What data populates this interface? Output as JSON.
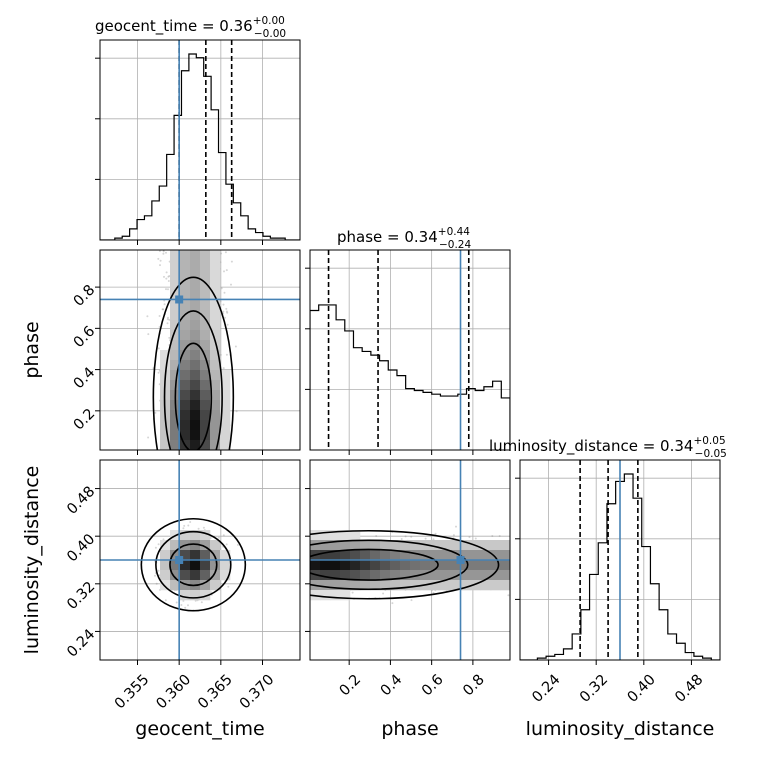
{
  "chart_data": {
    "type": "corner",
    "parameters": [
      "geocent_time",
      "phase",
      "luminosity_distance"
    ],
    "axis_labels": {
      "geocent_time": "geocent_time",
      "phase": "phase",
      "luminosity_distance": "luminosity_distance"
    },
    "titles": [
      {
        "param": "geocent_time",
        "prefix": "geocent_time = 0.36",
        "plus": "+0.00",
        "minus": "−0.00"
      },
      {
        "param": "phase",
        "prefix": "phase = 0.34",
        "plus": "+0.44",
        "minus": "−0.24"
      },
      {
        "param": "luminosity_distance",
        "prefix": "luminosity_distance = 0.34",
        "plus": "+0.05",
        "minus": "−0.05"
      }
    ],
    "ranges": {
      "geocent_time": [
        0.3505,
        0.3745
      ],
      "phase": [
        0.01,
        0.98
      ],
      "luminosity_distance": [
        0.192,
        0.528
      ]
    },
    "ticks": {
      "geocent_time": [
        "0.355",
        "0.360",
        "0.365",
        "0.370"
      ],
      "phase": [
        "0.2",
        "0.4",
        "0.6",
        "0.8"
      ],
      "luminosity_distance": [
        "0.24",
        "0.32",
        "0.40",
        "0.48"
      ]
    },
    "truths": {
      "geocent_time": 0.36,
      "phase": 0.74,
      "luminosity_distance": 0.36
    },
    "quantiles": {
      "geocent_time": [
        0.36,
        0.3632,
        0.3663
      ],
      "phase": [
        0.1,
        0.34,
        0.78
      ],
      "luminosity_distance": [
        0.293,
        0.34,
        0.39
      ]
    },
    "histograms": {
      "geocent_time": [
        0,
        0,
        0.01,
        0.02,
        0.06,
        0.11,
        0.13,
        0.21,
        0.29,
        0.46,
        0.67,
        0.91,
        1.0,
        0.98,
        0.88,
        0.7,
        0.47,
        0.3,
        0.2,
        0.13,
        0.06,
        0.04,
        0.02,
        0.01,
        0.01,
        0,
        0
      ],
      "phase": [
        0.75,
        0.78,
        0.78,
        0.7,
        0.64,
        0.55,
        0.53,
        0.51,
        0.48,
        0.43,
        0.4,
        0.33,
        0.32,
        0.31,
        0.3,
        0.29,
        0.29,
        0.3,
        0.33,
        0.32,
        0.34,
        0.37,
        0.28
      ],
      "luminosity_distance": [
        0,
        0,
        0.01,
        0.02,
        0.03,
        0.06,
        0.14,
        0.27,
        0.46,
        0.63,
        0.84,
        0.96,
        1.0,
        0.87,
        0.61,
        0.41,
        0.27,
        0.14,
        0.09,
        0.04,
        0.02,
        0.01,
        0
      ]
    },
    "peaks": {
      "geocent_time_vs_phase": {
        "x": 0.3617,
        "y": 0.12
      },
      "geocent_time_vs_luminosity_distance": {
        "x": 0.3617,
        "y": 0.352
      },
      "phase_vs_luminosity_distance": {
        "x": 0.1,
        "y": 0.352
      }
    },
    "contour_levels": 3,
    "grid": true,
    "data_point_markers": "grey scatter",
    "truth_color": "#4682b4"
  }
}
